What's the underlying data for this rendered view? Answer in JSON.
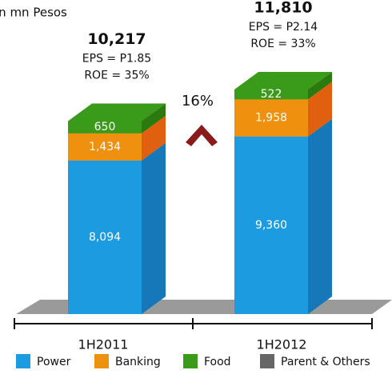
{
  "chart_data": {
    "type": "bar3d-stacked",
    "title": "in mn Pesos",
    "categories": [
      "1H2011",
      "1H2012"
    ],
    "series": [
      {
        "name": "Power",
        "color": "#1d9be0",
        "side": "#1678b8",
        "values": [
          8094,
          9360
        ],
        "value_labels": [
          "8,094",
          "9,360"
        ]
      },
      {
        "name": "Banking",
        "color": "#f0900f",
        "side": "#e0600f",
        "values": [
          1434,
          1958
        ],
        "value_labels": [
          "1,434",
          "1,958"
        ]
      },
      {
        "name": "Food",
        "color": "#3a9a1a",
        "side": "#2a7a10",
        "values": [
          650,
          522
        ],
        "value_labels": [
          "650",
          "522"
        ]
      },
      {
        "name": "Parent & Others",
        "color": "#666666",
        "side": "#444444",
        "values": [
          null,
          null
        ]
      }
    ],
    "totals": [
      10217,
      11810
    ],
    "total_labels": [
      "10,217",
      "11,810"
    ],
    "eps": [
      "EPS = P1.85",
      "EPS = P2.14"
    ],
    "roe": [
      "ROE = 35%",
      "ROE = 33%"
    ],
    "growth": "16%"
  }
}
